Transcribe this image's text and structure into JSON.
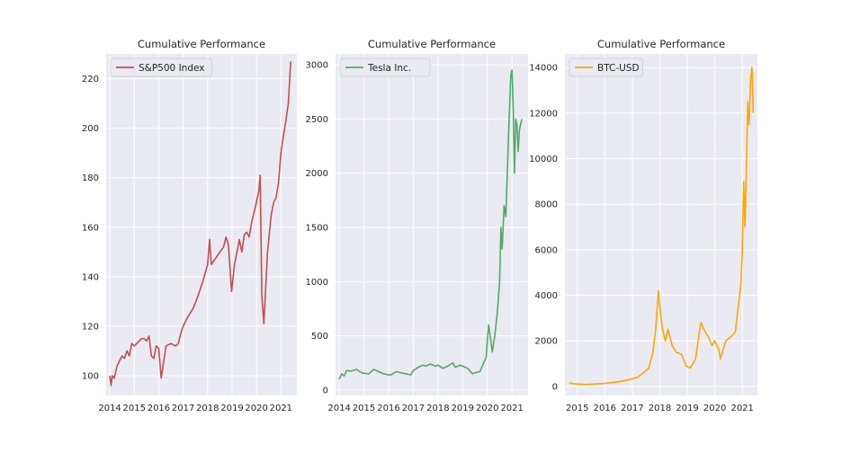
{
  "chart_data": [
    {
      "type": "line",
      "title": "Cumulative Performance",
      "color": "#c44e52",
      "legend": "top-left",
      "grid": true,
      "series": [
        {
          "name": "S&P500 Index",
          "x": [
            2014.0,
            2014.05,
            2014.1,
            2014.18,
            2014.3,
            2014.4,
            2014.5,
            2014.6,
            2014.7,
            2014.8,
            2014.9,
            2015.0,
            2015.2,
            2015.3,
            2015.4,
            2015.5,
            2015.6,
            2015.7,
            2015.8,
            2015.9,
            2016.0,
            2016.1,
            2016.3,
            2016.5,
            2016.7,
            2016.8,
            2016.9,
            2017.0,
            2017.2,
            2017.4,
            2017.6,
            2017.8,
            2018.0,
            2018.08,
            2018.15,
            2018.3,
            2018.5,
            2018.65,
            2018.75,
            2018.85,
            2018.98,
            2019.1,
            2019.3,
            2019.4,
            2019.5,
            2019.6,
            2019.7,
            2019.8,
            2019.95,
            2020.1,
            2020.15,
            2020.22,
            2020.3,
            2020.45,
            2020.6,
            2020.7,
            2020.8,
            2020.9,
            2021.0,
            2021.1,
            2021.2,
            2021.3,
            2021.4
          ],
          "values": [
            100,
            96,
            100,
            99,
            104,
            106,
            108,
            107,
            110,
            108,
            113,
            112,
            114,
            115,
            115,
            114,
            116,
            108,
            107,
            112,
            111,
            99,
            112,
            113,
            112,
            113,
            117,
            120,
            124,
            127,
            132,
            138,
            145,
            155,
            145,
            147,
            150,
            152,
            156,
            153,
            134,
            145,
            155,
            150,
            157,
            158,
            156,
            162,
            168,
            175,
            181,
            132,
            121,
            150,
            165,
            170,
            172,
            178,
            190,
            197,
            203,
            210,
            227
          ]
        }
      ],
      "xlim": [
        2013.85,
        2021.65
      ],
      "ylim": [
        92,
        230
      ],
      "xticks": [
        2014,
        2015,
        2016,
        2017,
        2018,
        2019,
        2020,
        2021
      ],
      "yticks": [
        100,
        120,
        140,
        160,
        180,
        200,
        220
      ]
    },
    {
      "type": "line",
      "title": "Cumulative Performance",
      "color": "#55a868",
      "legend": "top-left",
      "grid": true,
      "series": [
        {
          "name": "Tesla Inc.",
          "x": [
            2014.0,
            2014.1,
            2014.2,
            2014.3,
            2014.5,
            2014.7,
            2014.9,
            2015.0,
            2015.2,
            2015.4,
            2015.6,
            2015.8,
            2016.0,
            2016.1,
            2016.3,
            2016.5,
            2016.7,
            2016.9,
            2017.0,
            2017.2,
            2017.4,
            2017.5,
            2017.7,
            2017.9,
            2018.0,
            2018.2,
            2018.4,
            2018.6,
            2018.7,
            2018.9,
            2019.0,
            2019.2,
            2019.4,
            2019.5,
            2019.7,
            2019.85,
            2019.95,
            2020.05,
            2020.12,
            2020.2,
            2020.3,
            2020.4,
            2020.5,
            2020.55,
            2020.6,
            2020.68,
            2020.75,
            2020.85,
            2020.95,
            2021.0,
            2021.05,
            2021.1,
            2021.15,
            2021.2,
            2021.25,
            2021.3,
            2021.4
          ],
          "values": [
            100,
            150,
            130,
            180,
            175,
            190,
            160,
            155,
            150,
            190,
            170,
            150,
            140,
            140,
            170,
            160,
            150,
            140,
            180,
            210,
            230,
            220,
            240,
            220,
            230,
            200,
            220,
            250,
            210,
            230,
            220,
            200,
            150,
            160,
            170,
            250,
            300,
            600,
            500,
            350,
            500,
            700,
            1000,
            1500,
            1300,
            1700,
            1600,
            2300,
            2900,
            2950,
            2600,
            2000,
            2500,
            2450,
            2200,
            2400,
            2500
          ]
        }
      ],
      "xlim": [
        2013.85,
        2021.65
      ],
      "ylim": [
        -50,
        3100
      ],
      "xticks": [
        2014,
        2015,
        2016,
        2017,
        2018,
        2019,
        2020,
        2021
      ],
      "yticks": [
        0,
        500,
        1000,
        1500,
        2000,
        2500,
        3000
      ]
    },
    {
      "type": "line",
      "title": "Cumulative Performance",
      "color": "#ffa500",
      "legend": "top-left",
      "grid": true,
      "series": [
        {
          "name": "BTC-USD",
          "x": [
            2014.7,
            2015.0,
            2015.3,
            2015.6,
            2016.0,
            2016.5,
            2016.9,
            2017.2,
            2017.4,
            2017.6,
            2017.75,
            2017.85,
            2017.95,
            2018.0,
            2018.1,
            2018.2,
            2018.3,
            2018.45,
            2018.6,
            2018.8,
            2018.95,
            2019.1,
            2019.3,
            2019.45,
            2019.5,
            2019.6,
            2019.75,
            2019.9,
            2020.0,
            2020.15,
            2020.2,
            2020.4,
            2020.6,
            2020.75,
            2020.85,
            2020.95,
            2021.0,
            2021.05,
            2021.1,
            2021.2,
            2021.25,
            2021.3,
            2021.35,
            2021.4
          ],
          "values": [
            150,
            100,
            80,
            100,
            130,
            200,
            300,
            400,
            600,
            800,
            1500,
            2500,
            4200,
            3500,
            2500,
            2000,
            2500,
            1800,
            1500,
            1400,
            900,
            800,
            1200,
            2500,
            2800,
            2500,
            2200,
            1800,
            2000,
            1600,
            1200,
            2000,
            2200,
            2400,
            3500,
            4500,
            6000,
            9000,
            7000,
            12500,
            11500,
            13500,
            14000,
            12000
          ]
        }
      ],
      "xlim": [
        2014.55,
        2021.55
      ],
      "ylim": [
        -400,
        14600
      ],
      "xticks": [
        2015,
        2016,
        2017,
        2018,
        2019,
        2020,
        2021
      ],
      "yticks": [
        0,
        2000,
        4000,
        6000,
        8000,
        10000,
        12000,
        14000
      ]
    }
  ]
}
